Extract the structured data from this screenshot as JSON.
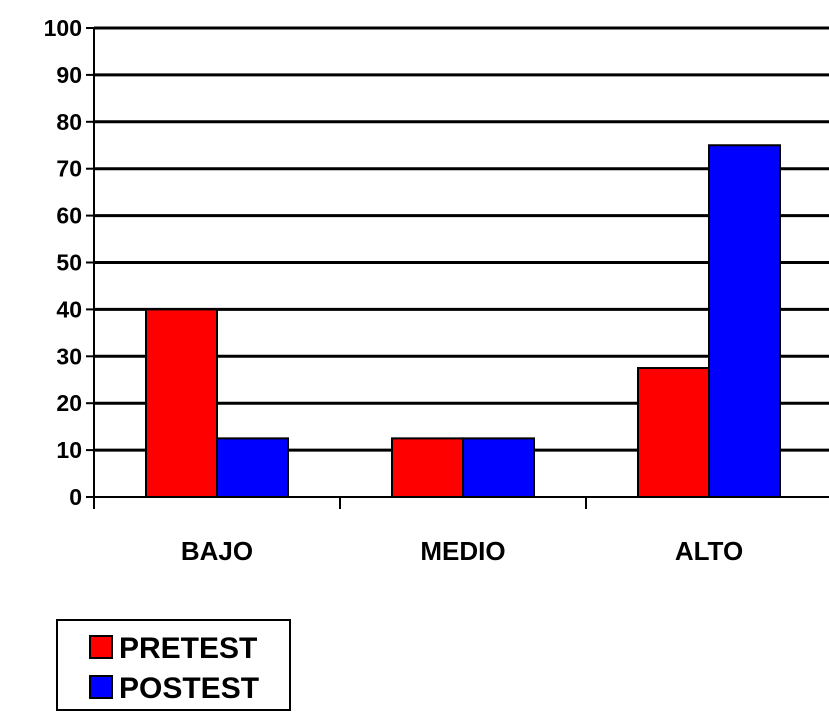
{
  "chart_data": {
    "type": "bar",
    "categories": [
      "BAJO",
      "MEDIO",
      "ALTO"
    ],
    "series": [
      {
        "name": "PRETEST",
        "values": [
          40,
          12.5,
          27.5
        ],
        "color": "#ff0000"
      },
      {
        "name": "POSTEST",
        "values": [
          12.5,
          12.5,
          75
        ],
        "color": "#0000ff"
      }
    ],
    "yticks": [
      "0",
      "10",
      "20",
      "30",
      "40",
      "50",
      "60",
      "70",
      "80",
      "90",
      "100"
    ],
    "ylim": [
      0,
      100
    ],
    "grid": true,
    "legend_position": "bottom-left"
  }
}
